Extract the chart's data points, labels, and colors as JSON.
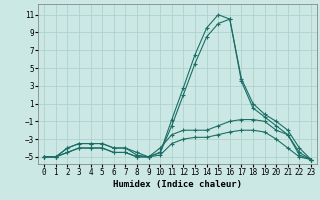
{
  "xlabel": "Humidex (Indice chaleur)",
  "background_color": "#cce8e4",
  "grid_color": "#aacfcc",
  "line_color": "#1a6e65",
  "xlim": [
    -0.5,
    23.5
  ],
  "ylim": [
    -5.8,
    12.2
  ],
  "xticks": [
    0,
    1,
    2,
    3,
    4,
    5,
    6,
    7,
    8,
    9,
    10,
    11,
    12,
    13,
    14,
    15,
    16,
    17,
    18,
    19,
    20,
    21,
    22,
    23
  ],
  "yticks": [
    -5,
    -3,
    -1,
    1,
    3,
    5,
    7,
    9,
    11
  ],
  "lines": [
    {
      "x": [
        0,
        1,
        2,
        3,
        4,
        5,
        6,
        7,
        8,
        9,
        10,
        11,
        12,
        13,
        14,
        15,
        16,
        17,
        18,
        19,
        20,
        21,
        22,
        23
      ],
      "y": [
        -5,
        -5,
        -4.5,
        -4,
        -4,
        -4,
        -4.5,
        -4.5,
        -5,
        -5,
        -4.5,
        -0.8,
        2.8,
        6.5,
        9.5,
        11.0,
        10.5,
        3.5,
        0.5,
        -0.5,
        -1.5,
        -2.5,
        -4.5,
        -5.3
      ]
    },
    {
      "x": [
        0,
        1,
        2,
        3,
        4,
        5,
        6,
        7,
        8,
        9,
        10,
        11,
        12,
        13,
        14,
        15,
        16,
        17,
        18,
        19,
        20,
        21,
        22,
        23
      ],
      "y": [
        -5,
        -5,
        -4.5,
        -4,
        -4,
        -4,
        -4.5,
        -4.5,
        -5,
        -5,
        -4.5,
        -1.5,
        2.0,
        5.5,
        8.5,
        10.0,
        10.5,
        3.8,
        1.0,
        -0.2,
        -1.0,
        -2.0,
        -4.0,
        -5.3
      ]
    },
    {
      "x": [
        0,
        1,
        2,
        3,
        4,
        5,
        6,
        7,
        8,
        9,
        10,
        11,
        12,
        13,
        14,
        15,
        16,
        17,
        18,
        19,
        20,
        21,
        22,
        23
      ],
      "y": [
        -5,
        -5,
        -4,
        -3.5,
        -3.5,
        -3.5,
        -4,
        -4,
        -4.5,
        -5,
        -4.0,
        -2.5,
        -2.0,
        -2.0,
        -2.0,
        -1.5,
        -1.0,
        -0.8,
        -0.8,
        -1.0,
        -2.0,
        -2.5,
        -4.8,
        -5.3
      ]
    },
    {
      "x": [
        0,
        1,
        2,
        3,
        4,
        5,
        6,
        7,
        8,
        9,
        10,
        11,
        12,
        13,
        14,
        15,
        16,
        17,
        18,
        19,
        20,
        21,
        22,
        23
      ],
      "y": [
        -5,
        -5,
        -4,
        -3.5,
        -3.5,
        -3.5,
        -4,
        -4,
        -4.8,
        -5,
        -4.8,
        -3.5,
        -3.0,
        -2.8,
        -2.8,
        -2.5,
        -2.2,
        -2.0,
        -2.0,
        -2.2,
        -3.0,
        -4.0,
        -5.0,
        -5.3
      ]
    }
  ]
}
